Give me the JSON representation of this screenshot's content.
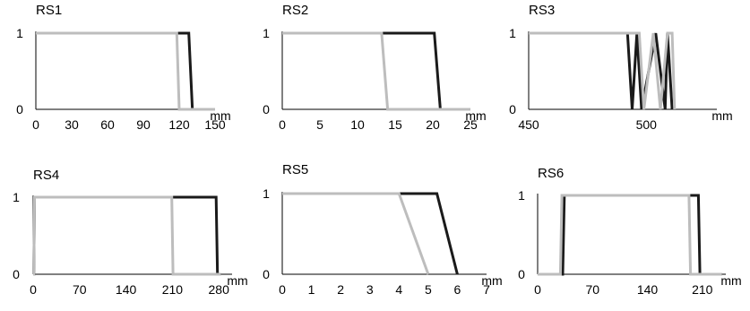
{
  "chart_data": [
    {
      "type": "line",
      "title": "RS1",
      "x_unit": "mm",
      "xlim": [
        0,
        150
      ],
      "ylim": [
        0,
        1
      ],
      "x_ticks": [
        "0",
        "30",
        "60",
        "90",
        "120",
        "150"
      ],
      "y_ticks": [
        "0",
        "1"
      ],
      "series": [
        {
          "color": "#1a1a1a",
          "x": [
            0,
            128,
            131,
            150
          ],
          "y": [
            1,
            1,
            0,
            0
          ]
        },
        {
          "color": "#bdbdbd",
          "x": [
            0,
            118,
            120,
            150
          ],
          "y": [
            1,
            1,
            0,
            0
          ]
        }
      ]
    },
    {
      "type": "line",
      "title": "RS2",
      "x_unit": "mm",
      "xlim": [
        0,
        25
      ],
      "ylim": [
        0,
        1
      ],
      "x_ticks": [
        "0",
        "5",
        "10",
        "15",
        "20",
        "25"
      ],
      "y_ticks": [
        "0",
        "1"
      ],
      "series": [
        {
          "color": "#1a1a1a",
          "x": [
            0,
            20.2,
            21,
            25
          ],
          "y": [
            1,
            1,
            0,
            0
          ]
        },
        {
          "color": "#bdbdbd",
          "x": [
            0,
            13.2,
            14,
            25
          ],
          "y": [
            1,
            1,
            0,
            0
          ]
        }
      ]
    },
    {
      "type": "line",
      "title": "RS3",
      "x_unit": "mm",
      "xlim": [
        450,
        530
      ],
      "ylim": [
        0,
        1
      ],
      "x_ticks": [
        "450",
        "500"
      ],
      "x_tick_values": [
        450,
        500
      ],
      "y_ticks": [
        "0",
        "1"
      ],
      "series": [
        {
          "color": "#1a1a1a",
          "x": [
            450,
            492,
            494,
            496,
            498,
            504,
            508,
            509,
            511
          ],
          "y": [
            1,
            1,
            0,
            1,
            0,
            1,
            0,
            1,
            0
          ]
        },
        {
          "color": "#bdbdbd",
          "x": [
            450,
            497,
            499,
            503,
            506,
            509,
            511,
            512
          ],
          "y": [
            1,
            1,
            0,
            1,
            0,
            1,
            1,
            0
          ]
        }
      ]
    },
    {
      "type": "line",
      "title": "RS4",
      "x_unit": "mm",
      "xlim": [
        0,
        300
      ],
      "ylim": [
        0,
        1
      ],
      "x_ticks": [
        "0",
        "70",
        "140",
        "210",
        "280"
      ],
      "y_ticks": [
        "0",
        "1"
      ],
      "series": [
        {
          "color": "#1a1a1a",
          "x": [
            0,
            1,
            2,
            276,
            278,
            283
          ],
          "y": [
            0,
            0,
            1,
            1,
            0,
            0
          ]
        },
        {
          "color": "#bdbdbd",
          "x": [
            0,
            1,
            2,
            209,
            211,
            283
          ],
          "y": [
            0,
            0,
            1,
            1,
            0,
            0
          ]
        }
      ]
    },
    {
      "type": "line",
      "title": "RS5",
      "x_unit": "mm",
      "xlim": [
        0,
        7
      ],
      "ylim": [
        0,
        1
      ],
      "x_ticks": [
        "0",
        "1",
        "2",
        "3",
        "4",
        "5",
        "6",
        "7"
      ],
      "y_ticks": [
        "0",
        "1"
      ],
      "series": [
        {
          "color": "#1a1a1a",
          "x": [
            0,
            5.3,
            6
          ],
          "y": [
            1,
            1,
            0
          ]
        },
        {
          "color": "#bdbdbd",
          "x": [
            0,
            4,
            5
          ],
          "y": [
            1,
            1,
            0
          ]
        }
      ]
    },
    {
      "type": "line",
      "title": "RS6",
      "x_unit": "mm",
      "xlim": [
        0,
        240
      ],
      "ylim": [
        0,
        1
      ],
      "x_ticks": [
        "0",
        "70",
        "140",
        "210"
      ],
      "y_ticks": [
        "0",
        "1"
      ],
      "series": [
        {
          "color": "#1a1a1a",
          "x": [
            0,
            32,
            34,
            205,
            207,
            235
          ],
          "y": [
            0,
            0,
            1,
            1,
            0,
            0
          ]
        },
        {
          "color": "#bdbdbd",
          "x": [
            0,
            29,
            31,
            193,
            195,
            235
          ],
          "y": [
            0,
            0,
            1,
            1,
            0,
            0
          ]
        }
      ]
    }
  ]
}
